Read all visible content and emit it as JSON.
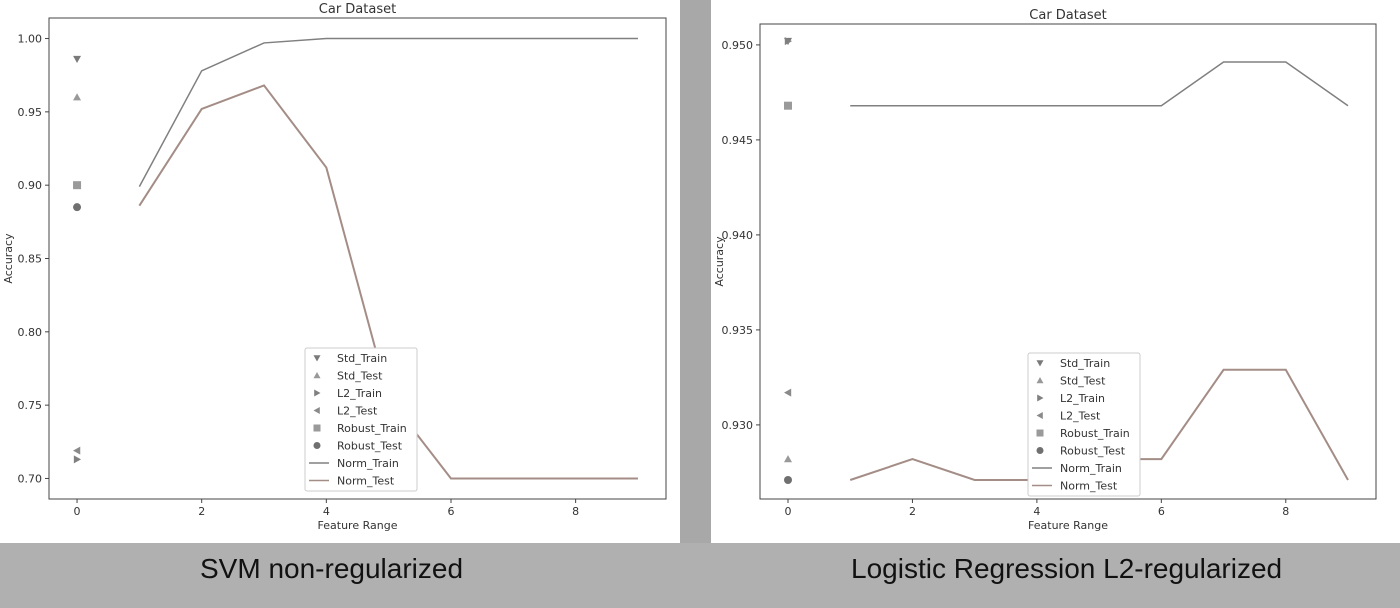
{
  "captions": {
    "left": "SVM non-regularized",
    "right": "Logistic Regression L2-regularized"
  },
  "chart_data": [
    {
      "type": "line",
      "title": "Car Dataset",
      "xlabel": "Feature Range",
      "ylabel": "Accuracy",
      "xlim": [
        -0.45,
        9.45
      ],
      "ylim": [
        0.686,
        1.014
      ],
      "xticks": [
        0,
        2,
        4,
        6,
        8
      ],
      "yticks": [
        0.7,
        0.75,
        0.8,
        0.85,
        0.9,
        0.95,
        1.0
      ],
      "ytick_labels": [
        "0.70",
        "0.75",
        "0.80",
        "0.85",
        "0.90",
        "0.95",
        "1.00"
      ],
      "legend_position": "lower center",
      "markers": [
        {
          "name": "Std_Train",
          "marker": "triangle-down",
          "x": 0,
          "y": 0.986
        },
        {
          "name": "Std_Test",
          "marker": "triangle-up",
          "x": 0,
          "y": 0.96
        },
        {
          "name": "L2_Train",
          "marker": "triangle-right",
          "x": 0,
          "y": 0.713
        },
        {
          "name": "L2_Test",
          "marker": "triangle-left",
          "x": 0,
          "y": 0.719
        },
        {
          "name": "Robust_Train",
          "marker": "square",
          "x": 0,
          "y": 0.9
        },
        {
          "name": "Robust_Test",
          "marker": "circle",
          "x": 0,
          "y": 0.885
        }
      ],
      "series": [
        {
          "name": "Norm_Train",
          "color": "#808080",
          "x": [
            1,
            2,
            3,
            4,
            5,
            6,
            7,
            8,
            9
          ],
          "values": [
            0.899,
            0.978,
            0.997,
            1.0,
            1.0,
            1.0,
            1.0,
            1.0,
            1.0
          ]
        },
        {
          "name": "Norm_Test",
          "color": "#a48d86",
          "x": [
            1,
            2,
            3,
            4,
            5,
            6,
            7,
            8,
            9
          ],
          "values": [
            0.886,
            0.952,
            0.968,
            0.912,
            0.755,
            0.7,
            0.7,
            0.7,
            0.7
          ]
        }
      ]
    },
    {
      "type": "line",
      "title": "Car Dataset",
      "xlabel": "Feature Range",
      "ylabel": "Accuracy",
      "xlim": [
        -0.45,
        9.45
      ],
      "ylim": [
        0.9261,
        0.9511
      ],
      "xticks": [
        0,
        2,
        4,
        6,
        8
      ],
      "yticks": [
        0.93,
        0.935,
        0.94,
        0.945,
        0.95
      ],
      "ytick_labels": [
        "0.930",
        "0.935",
        "0.940",
        "0.945",
        "0.950"
      ],
      "legend_position": "lower center",
      "markers": [
        {
          "name": "Std_Train",
          "marker": "triangle-down",
          "x": 0,
          "y": 0.9502
        },
        {
          "name": "Std_Test",
          "marker": "triangle-up",
          "x": 0,
          "y": 0.9282
        },
        {
          "name": "L2_Train",
          "marker": "triangle-right",
          "x": 0,
          "y": 0.9502
        },
        {
          "name": "L2_Test",
          "marker": "triangle-left",
          "x": 0,
          "y": 0.9317
        },
        {
          "name": "Robust_Train",
          "marker": "square",
          "x": 0,
          "y": 0.9468
        },
        {
          "name": "Robust_Test",
          "marker": "circle",
          "x": 0,
          "y": 0.9271
        }
      ],
      "series": [
        {
          "name": "Norm_Train",
          "color": "#808080",
          "x": [
            1,
            2,
            3,
            4,
            5,
            6,
            7,
            8,
            9
          ],
          "values": [
            0.9468,
            0.9468,
            0.9468,
            0.9468,
            0.9468,
            0.9468,
            0.9491,
            0.9491,
            0.9468
          ]
        },
        {
          "name": "Norm_Test",
          "color": "#a48d86",
          "x": [
            1,
            2,
            3,
            4,
            5,
            6,
            7,
            8,
            9
          ],
          "values": [
            0.9271,
            0.9282,
            0.9271,
            0.9271,
            0.9282,
            0.9282,
            0.9329,
            0.9329,
            0.9271
          ]
        }
      ]
    }
  ]
}
